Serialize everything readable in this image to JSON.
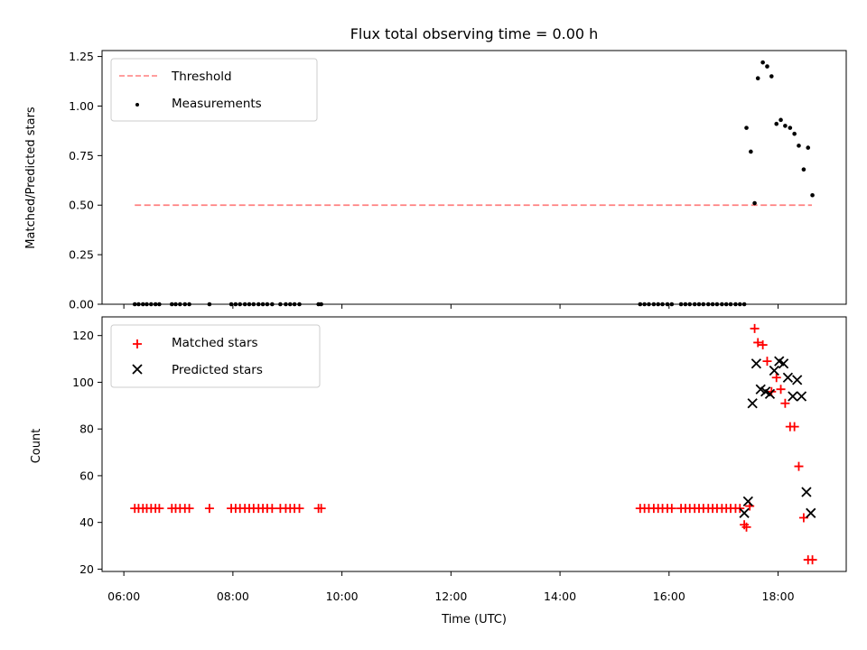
{
  "chart_data": [
    {
      "type": "scatter",
      "title": "Flux total observing time = 0.00 h",
      "xlabel": "",
      "ylabel": "Matched/Predicted stars",
      "xlim": [
        5.6,
        19.25
      ],
      "ylim": [
        0,
        1.28
      ],
      "yticks": [
        0.0,
        0.25,
        0.5,
        0.75,
        1.0,
        1.25
      ],
      "ytick_labels": [
        "0.00",
        "0.25",
        "0.50",
        "0.75",
        "1.00",
        "1.25"
      ],
      "legend_position": "top-left",
      "threshold": {
        "name": "Threshold",
        "color": "#ff7f7f",
        "style": "dashed",
        "x_start": 6.2,
        "x_end": 18.62,
        "y": 0.5
      },
      "series": [
        {
          "name": "Measurements",
          "marker": "dot",
          "color": "#000000",
          "x": [
            6.2,
            6.27,
            6.35,
            6.42,
            6.5,
            6.58,
            6.65,
            6.88,
            6.95,
            7.03,
            7.12,
            7.2,
            7.57,
            7.97,
            8.05,
            8.13,
            8.22,
            8.3,
            8.38,
            8.47,
            8.55,
            8.63,
            8.72,
            8.87,
            8.97,
            9.05,
            9.13,
            9.22,
            9.57,
            9.62,
            15.47,
            15.55,
            15.63,
            15.72,
            15.8,
            15.88,
            15.97,
            16.05,
            16.22,
            16.3,
            16.38,
            16.47,
            16.55,
            16.63,
            16.72,
            16.8,
            16.88,
            16.97,
            17.05,
            17.13,
            17.22,
            17.3,
            17.38,
            17.42,
            17.5,
            17.57,
            17.63,
            17.72,
            17.8,
            17.88,
            17.97,
            18.05,
            18.13,
            18.22,
            18.3,
            18.38,
            18.47,
            18.55,
            18.63
          ],
          "y": [
            0,
            0,
            0,
            0,
            0,
            0,
            0,
            0,
            0,
            0,
            0,
            0,
            0,
            0,
            0,
            0,
            0,
            0,
            0,
            0,
            0,
            0,
            0,
            0,
            0,
            0,
            0,
            0,
            0,
            0,
            0,
            0,
            0,
            0,
            0,
            0,
            0,
            0,
            0,
            0,
            0,
            0,
            0,
            0,
            0,
            0,
            0,
            0,
            0,
            0,
            0,
            0,
            0,
            0.89,
            0.77,
            0.51,
            1.14,
            1.22,
            1.2,
            1.15,
            0.91,
            0.93,
            0.9,
            0.89,
            0.86,
            0.8,
            0.68,
            0.79,
            0.55
          ]
        }
      ]
    },
    {
      "type": "scatter",
      "title": "",
      "xlabel": "Time (UTC)",
      "ylabel": "Count",
      "xlim": [
        5.6,
        19.25
      ],
      "ylim": [
        19,
        128
      ],
      "xticks": [
        6,
        8,
        10,
        12,
        14,
        16,
        18
      ],
      "xtick_labels": [
        "06:00",
        "08:00",
        "10:00",
        "12:00",
        "14:00",
        "16:00",
        "18:00"
      ],
      "yticks": [
        20,
        40,
        60,
        80,
        100,
        120
      ],
      "ytick_labels": [
        "20",
        "40",
        "60",
        "80",
        "100",
        "120"
      ],
      "legend_position": "top-left",
      "series": [
        {
          "name": "Matched stars",
          "marker": "plus",
          "color": "#ff0000",
          "x": [
            6.2,
            6.27,
            6.35,
            6.42,
            6.5,
            6.58,
            6.65,
            6.88,
            6.95,
            7.03,
            7.12,
            7.2,
            7.57,
            7.97,
            8.05,
            8.13,
            8.22,
            8.3,
            8.38,
            8.47,
            8.55,
            8.63,
            8.72,
            8.87,
            8.97,
            9.05,
            9.13,
            9.22,
            9.57,
            9.62,
            15.47,
            15.55,
            15.63,
            15.72,
            15.8,
            15.88,
            15.97,
            16.05,
            16.22,
            16.3,
            16.38,
            16.47,
            16.55,
            16.63,
            16.72,
            16.8,
            16.88,
            16.97,
            17.05,
            17.13,
            17.22,
            17.3,
            17.38,
            17.42,
            17.48,
            17.57,
            17.63,
            17.72,
            17.8,
            17.88,
            17.97,
            18.05,
            18.13,
            18.22,
            18.3,
            18.38,
            18.47,
            18.55,
            18.63
          ],
          "y": [
            46,
            46,
            46,
            46,
            46,
            46,
            46,
            46,
            46,
            46,
            46,
            46,
            46,
            46,
            46,
            46,
            46,
            46,
            46,
            46,
            46,
            46,
            46,
            46,
            46,
            46,
            46,
            46,
            46,
            46,
            46,
            46,
            46,
            46,
            46,
            46,
            46,
            46,
            46,
            46,
            46,
            46,
            46,
            46,
            46,
            46,
            46,
            46,
            46,
            46,
            46,
            46,
            39,
            38,
            47,
            123,
            117,
            116,
            109,
            96,
            102,
            97,
            91,
            81,
            81,
            64,
            42,
            24,
            24
          ]
        },
        {
          "name": "Predicted stars",
          "marker": "x",
          "color": "#000000",
          "x": [
            17.38,
            17.45,
            17.53,
            17.6,
            17.68,
            17.77,
            17.85,
            17.93,
            18.02,
            18.1,
            18.18,
            18.27,
            18.35,
            18.43,
            18.52,
            18.6
          ],
          "y": [
            44,
            49,
            91,
            108,
            97,
            96,
            95,
            105,
            109,
            108,
            102,
            94,
            101,
            94,
            53,
            44
          ]
        }
      ]
    }
  ]
}
